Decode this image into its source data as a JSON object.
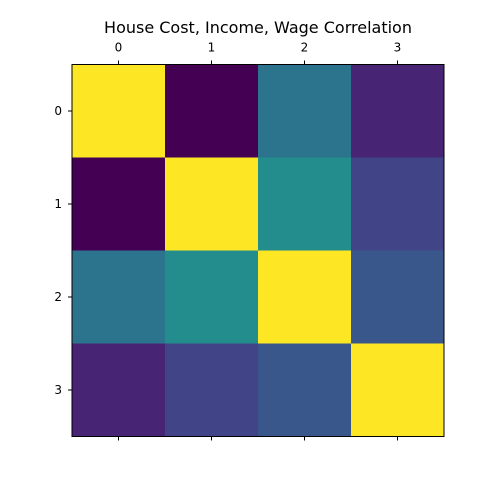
{
  "chart_data": {
    "type": "heatmap",
    "title": "House Cost, Income, Wage Correlation",
    "x_tick_labels": [
      "0",
      "1",
      "2",
      "3"
    ],
    "y_tick_labels": [
      "0",
      "1",
      "2",
      "3"
    ],
    "x_ticks_position": "top-and-bottom",
    "colormap": "viridis",
    "grid": false,
    "legend": "none",
    "matrix": [
      [
        1.0,
        0.0,
        0.38,
        0.1
      ],
      [
        0.0,
        1.0,
        0.48,
        0.2
      ],
      [
        0.38,
        0.48,
        1.0,
        0.27
      ],
      [
        0.1,
        0.2,
        0.27,
        1.0
      ]
    ]
  }
}
